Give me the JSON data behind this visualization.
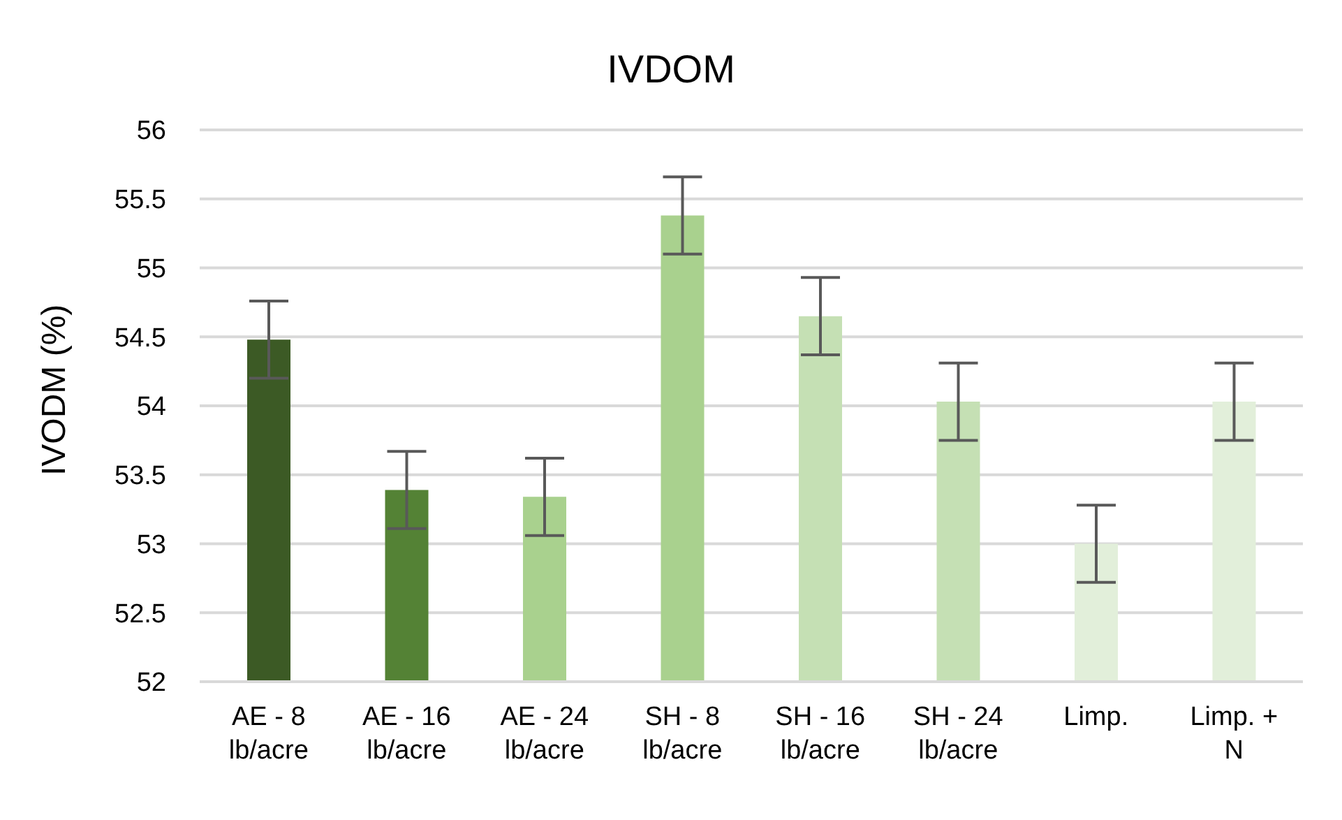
{
  "chart_data": {
    "type": "bar",
    "title": "IVDOM",
    "ylabel": "IVODM (%)",
    "categories": [
      "AE - 8 lb/acre",
      "AE - 16 lb/acre",
      "AE - 24 lb/acre",
      "SH - 8 lb/acre",
      "SH - 16 lb/acre",
      "SH - 24 lb/acre",
      "Limp.",
      "Limp. + N"
    ],
    "values": [
      54.48,
      53.39,
      53.34,
      55.38,
      54.65,
      54.03,
      53.0,
      54.03
    ],
    "errors": [
      0.28,
      0.28,
      0.28,
      0.28,
      0.28,
      0.28,
      0.28,
      0.28
    ],
    "colors": [
      "#3c5a25",
      "#548235",
      "#a9d18e",
      "#a9d18e",
      "#c5e0b4",
      "#c5e0b4",
      "#e2efda",
      "#e2efda"
    ],
    "ylim": [
      52,
      56
    ],
    "yticks": [
      52,
      52.5,
      53,
      53.5,
      54,
      54.5,
      55,
      55.5,
      56
    ],
    "grid": "y",
    "legend": false
  }
}
